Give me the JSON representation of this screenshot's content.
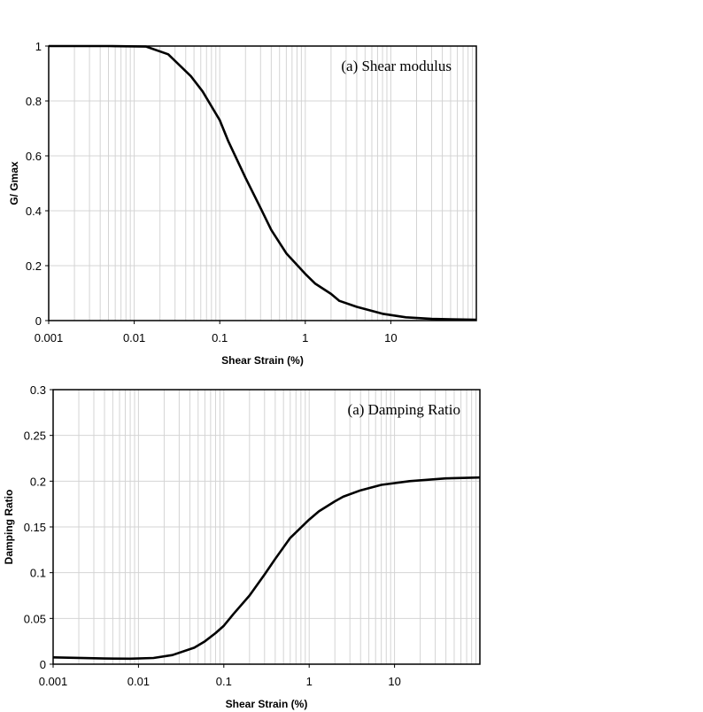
{
  "chart_data": [
    {
      "type": "line",
      "title": "",
      "annotation": "(a) Shear modulus",
      "xlabel": "Shear Strain (%)",
      "ylabel": "G/ Gmax",
      "xscale": "log",
      "xlim": [
        0.001,
        100
      ],
      "ylim": [
        0,
        1
      ],
      "xticks": [
        "0.001",
        "0.01",
        "0.1",
        "1",
        "10"
      ],
      "yticks": [
        "0",
        "0.2",
        "0.4",
        "0.6",
        "0.8",
        "1"
      ],
      "grid": true,
      "color": "#000000",
      "series": [
        {
          "name": "G/Gmax",
          "x": [
            0.001,
            0.005,
            0.0138,
            0.025,
            0.046,
            0.063,
            0.1,
            0.125,
            0.2,
            0.3,
            0.4,
            0.6,
            1,
            1.3,
            2,
            2.5,
            4,
            8,
            15,
            30,
            100
          ],
          "y": [
            1,
            1,
            0.998,
            0.97,
            0.89,
            0.835,
            0.73,
            0.655,
            0.52,
            0.41,
            0.33,
            0.245,
            0.17,
            0.135,
            0.097,
            0.072,
            0.05,
            0.025,
            0.012,
            0.006,
            0.003
          ]
        }
      ]
    },
    {
      "type": "line",
      "title": "",
      "annotation": "(a) Damping Ratio",
      "xlabel": "Shear Strain (%)",
      "ylabel": "Damping Ratio",
      "xscale": "log",
      "xlim": [
        0.001,
        100
      ],
      "ylim": [
        0,
        0.3
      ],
      "xticks": [
        "0.001",
        "0.01",
        "0.1",
        "1",
        "10"
      ],
      "yticks": [
        "0",
        "0.05",
        "0.1",
        "0.15",
        "0.2",
        "0.25",
        "0.3"
      ],
      "grid": true,
      "color": "#000000",
      "series": [
        {
          "name": "Damping Ratio",
          "x": [
            0.001,
            0.004,
            0.008,
            0.015,
            0.025,
            0.045,
            0.06,
            0.08,
            0.1,
            0.13,
            0.2,
            0.3,
            0.4,
            0.6,
            1,
            1.3,
            2,
            2.5,
            4,
            7,
            15,
            40,
            100
          ],
          "y": [
            0.0075,
            0.0062,
            0.006,
            0.0068,
            0.01,
            0.018,
            0.025,
            0.034,
            0.042,
            0.055,
            0.075,
            0.098,
            0.115,
            0.138,
            0.158,
            0.167,
            0.178,
            0.183,
            0.19,
            0.196,
            0.2,
            0.203,
            0.204
          ]
        }
      ]
    }
  ]
}
